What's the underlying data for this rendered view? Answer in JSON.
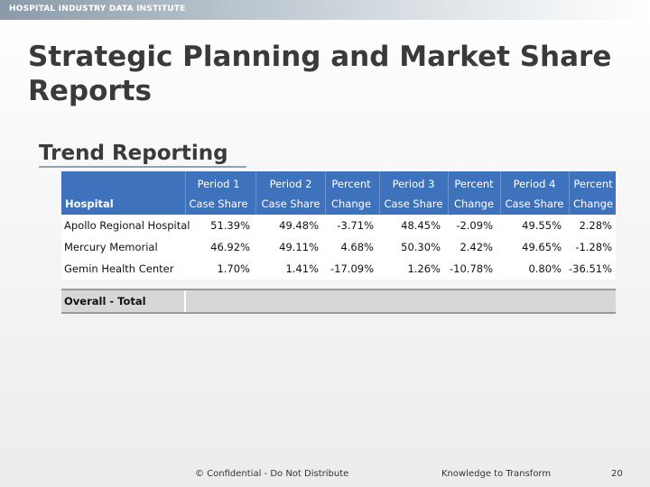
{
  "header": {
    "brand": "HOSPITAL INDUSTRY DATA INSTITUTE"
  },
  "slide": {
    "title": "Strategic Planning and Market Share Reports",
    "subtitle": "Trend Reporting"
  },
  "table": {
    "hospital_label": "Hospital",
    "columns": [
      {
        "l1": "Period 1",
        "l2": "Case Share"
      },
      {
        "l1": "Period 2",
        "l2": "Case Share"
      },
      {
        "l1": "Percent",
        "l2": "Change"
      },
      {
        "l1": "Period 3",
        "l2": "Case Share"
      },
      {
        "l1": "Percent",
        "l2": "Change"
      },
      {
        "l1": "Period 4",
        "l2": "Case Share"
      },
      {
        "l1": "Percent",
        "l2": "Change"
      }
    ],
    "rows": [
      {
        "name": "Apollo Regional Hospital",
        "values": [
          "51.39%",
          "49.48%",
          "-3.71%",
          "48.45%",
          "-2.09%",
          "49.55%",
          "2.28%"
        ]
      },
      {
        "name": "Mercury Memorial",
        "values": [
          "46.92%",
          "49.11%",
          "4.68%",
          "50.30%",
          "2.42%",
          "49.65%",
          "-1.28%"
        ]
      },
      {
        "name": "Gemin Health Center",
        "values": [
          "1.70%",
          "1.41%",
          "-17.09%",
          "1.26%",
          "-10.78%",
          "0.80%",
          "-36.51%"
        ]
      }
    ],
    "total_label": "Overall - Total"
  },
  "footer": {
    "confidential": "© Confidential - Do Not Distribute",
    "tagline": "Knowledge to Transform",
    "page_number": "20"
  }
}
